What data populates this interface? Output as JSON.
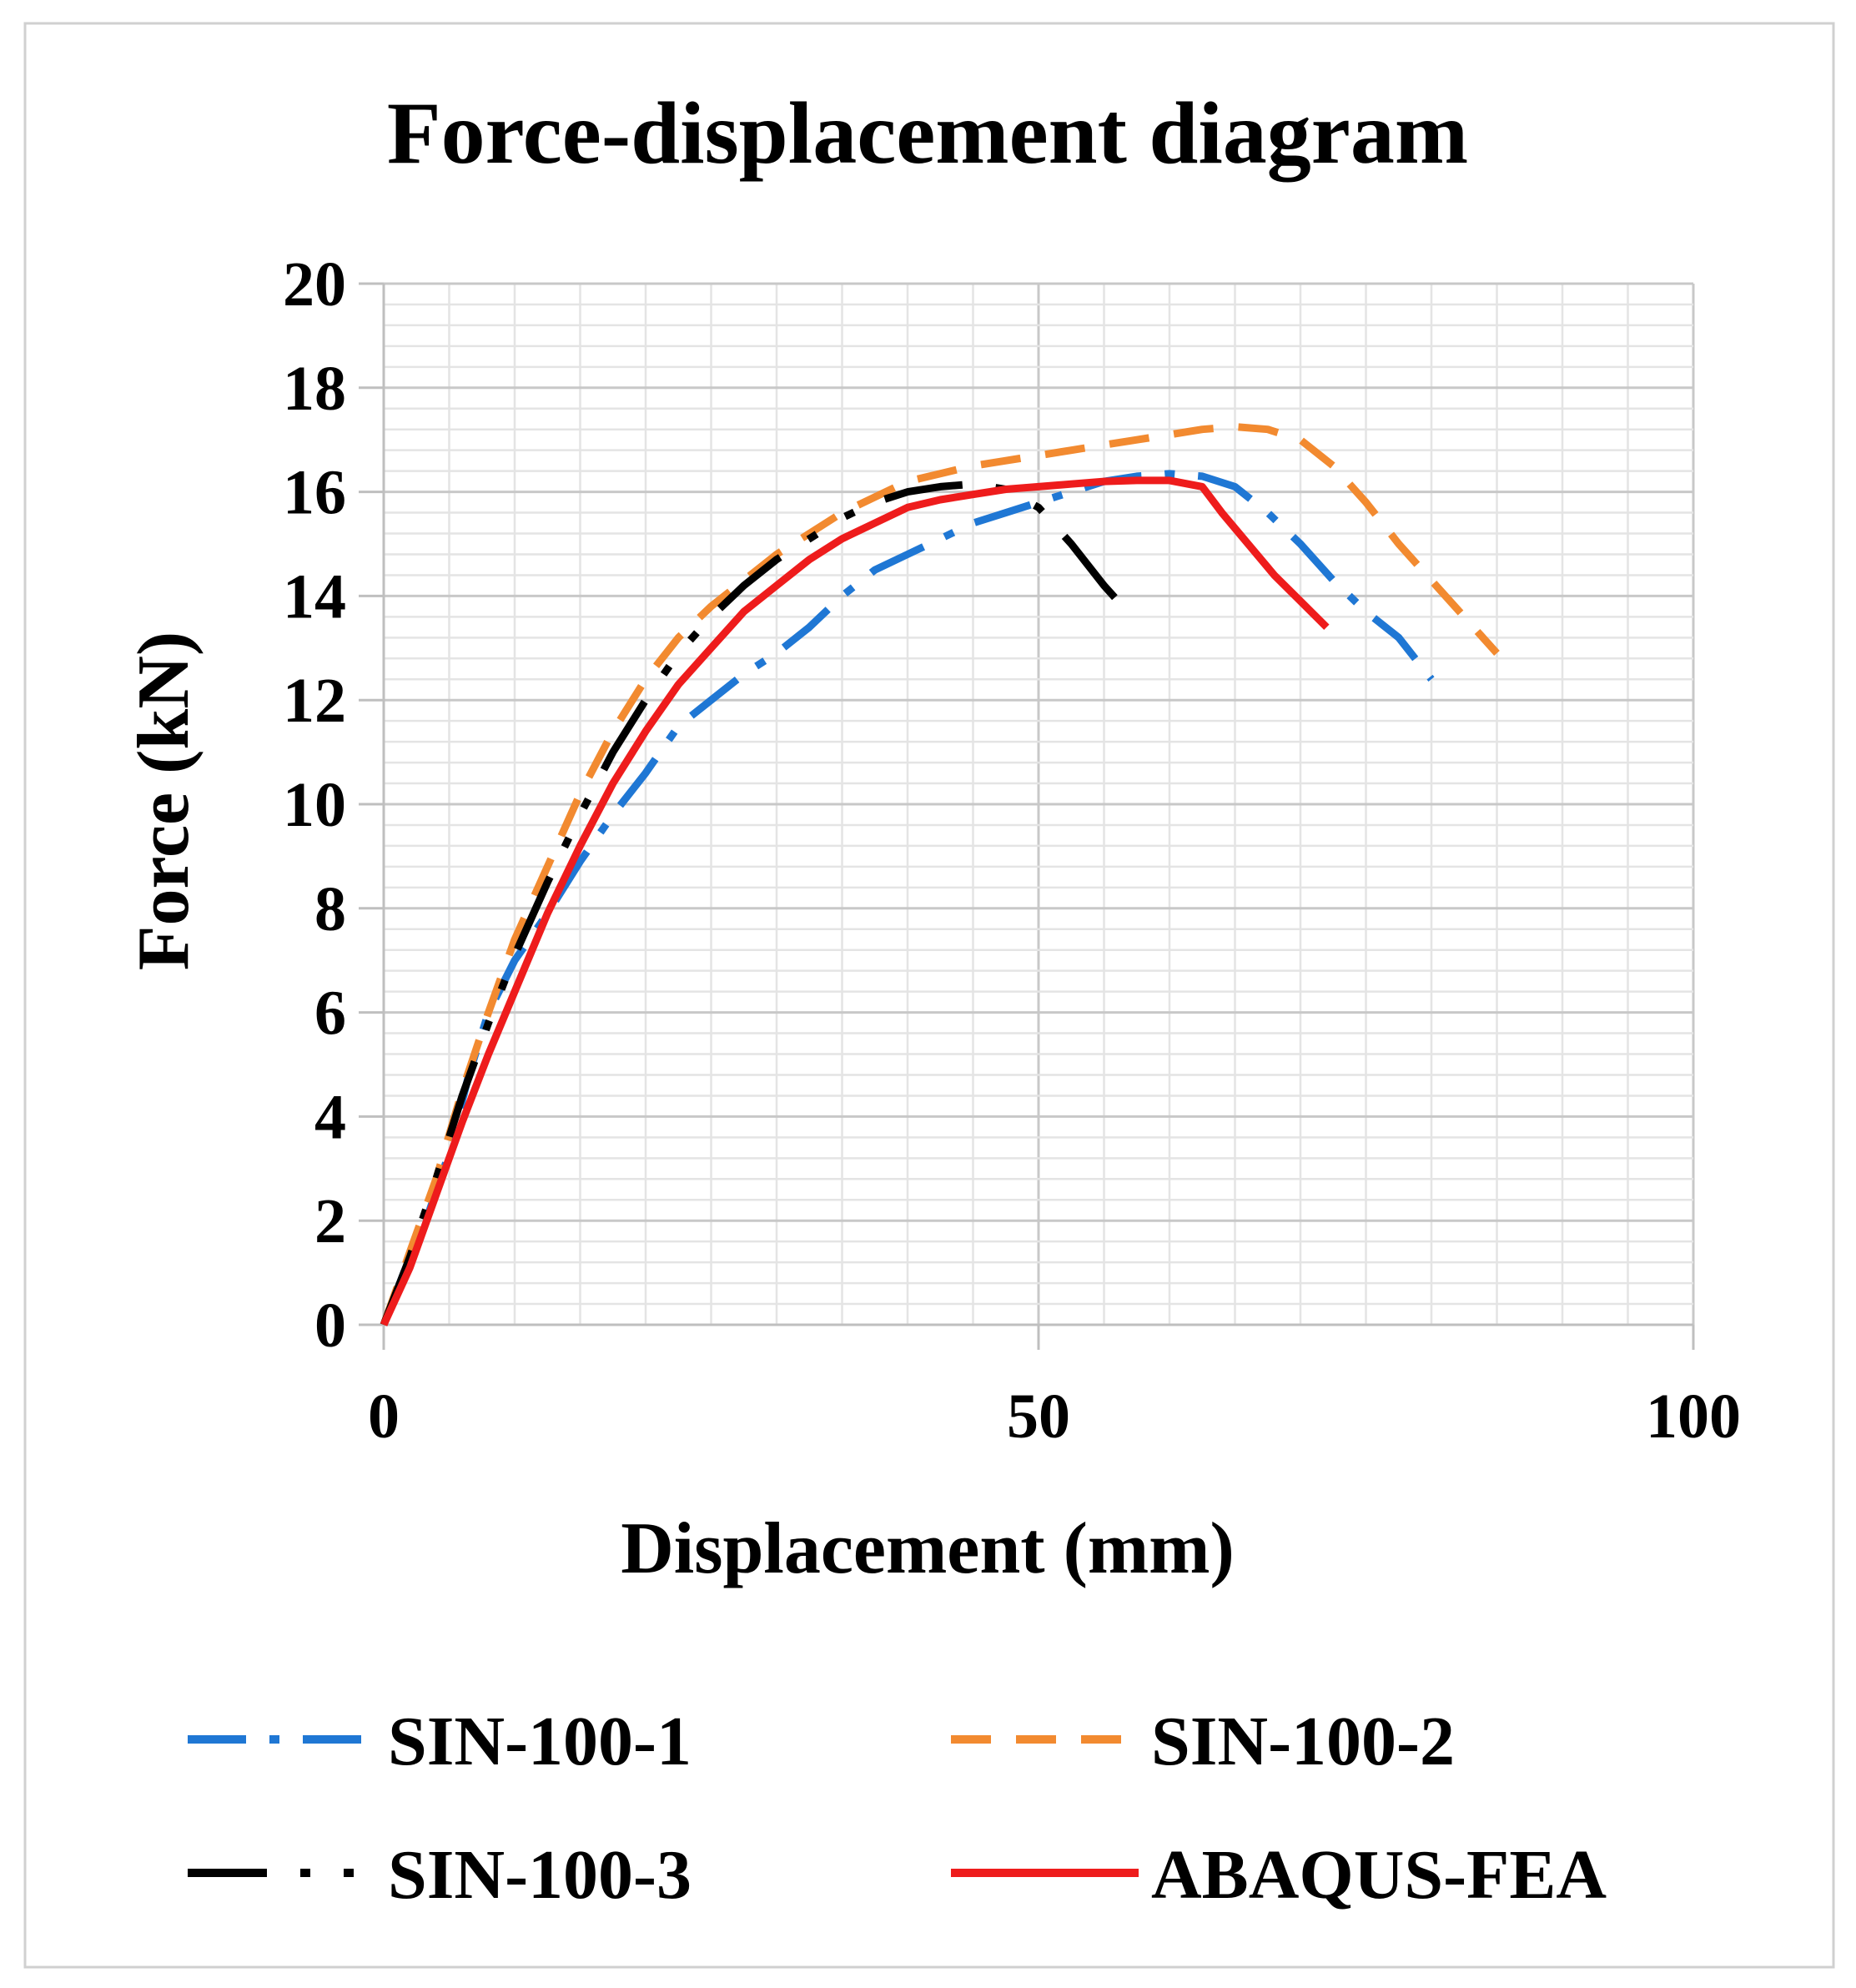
{
  "chart_data": {
    "type": "line",
    "title": "Force-displacement diagram",
    "xlabel": "Displacement (mm)",
    "ylabel": "Force (kN)",
    "xlim": [
      0,
      100
    ],
    "ylim": [
      0,
      20
    ],
    "x_ticks": [
      "0",
      "50",
      "100"
    ],
    "y_ticks": [
      "0",
      "2",
      "4",
      "6",
      "8",
      "10",
      "12",
      "14",
      "16",
      "18",
      "20"
    ],
    "grid": true,
    "legend_position": "bottom",
    "series": [
      {
        "name": "SIN-100-1",
        "color": "#1f77d4",
        "style": "dash-dot",
        "points": [
          [
            0,
            0
          ],
          [
            2,
            1.3
          ],
          [
            3.5,
            2.2
          ],
          [
            5,
            3.3
          ],
          [
            6.5,
            4.8
          ],
          [
            8,
            6.0
          ],
          [
            10,
            7.0
          ],
          [
            12.5,
            7.9
          ],
          [
            15,
            8.9
          ],
          [
            17.5,
            9.8
          ],
          [
            20,
            10.6
          ],
          [
            22.5,
            11.5
          ],
          [
            25,
            12.0
          ],
          [
            27.5,
            12.5
          ],
          [
            30,
            12.9
          ],
          [
            32.5,
            13.4
          ],
          [
            35,
            14.0
          ],
          [
            37.5,
            14.5
          ],
          [
            40,
            14.8
          ],
          [
            42.5,
            15.1
          ],
          [
            45,
            15.4
          ],
          [
            47.5,
            15.6
          ],
          [
            50,
            15.8
          ],
          [
            52.5,
            16.0
          ],
          [
            55,
            16.2
          ],
          [
            57.5,
            16.3
          ],
          [
            60,
            16.35
          ],
          [
            62.5,
            16.3
          ],
          [
            65,
            16.1
          ],
          [
            67.5,
            15.6
          ],
          [
            70,
            15.0
          ],
          [
            72.5,
            14.3
          ],
          [
            75,
            13.7
          ],
          [
            77.5,
            13.2
          ],
          [
            80,
            12.4
          ]
        ]
      },
      {
        "name": "SIN-100-2",
        "color": "#f28a30",
        "style": "dash",
        "points": [
          [
            0,
            0
          ],
          [
            2,
            1.4
          ],
          [
            4,
            2.8
          ],
          [
            6,
            4.5
          ],
          [
            8,
            6.0
          ],
          [
            10,
            7.4
          ],
          [
            12.5,
            8.8
          ],
          [
            15,
            10.2
          ],
          [
            17.5,
            11.4
          ],
          [
            20,
            12.4
          ],
          [
            22.5,
            13.2
          ],
          [
            25,
            13.8
          ],
          [
            27.5,
            14.3
          ],
          [
            30,
            14.8
          ],
          [
            32.5,
            15.2
          ],
          [
            35,
            15.6
          ],
          [
            37.5,
            15.9
          ],
          [
            40,
            16.2
          ],
          [
            42.5,
            16.35
          ],
          [
            45,
            16.5
          ],
          [
            47.5,
            16.6
          ],
          [
            50,
            16.7
          ],
          [
            52.5,
            16.8
          ],
          [
            55,
            16.9
          ],
          [
            57.5,
            17.0
          ],
          [
            60,
            17.1
          ],
          [
            62.5,
            17.2
          ],
          [
            65,
            17.25
          ],
          [
            67.5,
            17.2
          ],
          [
            70,
            17.0
          ],
          [
            72.5,
            16.5
          ],
          [
            75,
            15.8
          ],
          [
            77.5,
            15.0
          ],
          [
            80,
            14.3
          ],
          [
            82.5,
            13.6
          ],
          [
            85,
            12.9
          ]
        ]
      },
      {
        "name": "SIN-100-3",
        "color": "#000000",
        "style": "long-dash-dot-dot",
        "points": [
          [
            0,
            0
          ],
          [
            2,
            1.3
          ],
          [
            4,
            2.8
          ],
          [
            6,
            4.4
          ],
          [
            8,
            5.8
          ],
          [
            10,
            7.1
          ],
          [
            12.5,
            8.5
          ],
          [
            15,
            9.8
          ],
          [
            17.5,
            11.0
          ],
          [
            20,
            12.0
          ],
          [
            22.5,
            12.9
          ],
          [
            25,
            13.6
          ],
          [
            27.5,
            14.2
          ],
          [
            30,
            14.7
          ],
          [
            32.5,
            15.1
          ],
          [
            35,
            15.5
          ],
          [
            37.5,
            15.8
          ],
          [
            40,
            16.0
          ],
          [
            42.5,
            16.1
          ],
          [
            45,
            16.15
          ],
          [
            47.5,
            16.05
          ],
          [
            50,
            15.7
          ],
          [
            52.5,
            15.0
          ],
          [
            55,
            14.2
          ],
          [
            57.5,
            13.5
          ]
        ]
      },
      {
        "name": "ABAQUS-FEA",
        "color": "#ee1c1c",
        "style": "solid",
        "points": [
          [
            0,
            0
          ],
          [
            2,
            1.1
          ],
          [
            4,
            2.5
          ],
          [
            6,
            3.9
          ],
          [
            8,
            5.2
          ],
          [
            10,
            6.4
          ],
          [
            12.5,
            7.9
          ],
          [
            15,
            9.2
          ],
          [
            17.5,
            10.4
          ],
          [
            20,
            11.4
          ],
          [
            22.5,
            12.3
          ],
          [
            25,
            13.0
          ],
          [
            27.5,
            13.7
          ],
          [
            30,
            14.2
          ],
          [
            32.5,
            14.7
          ],
          [
            35,
            15.1
          ],
          [
            37.5,
            15.4
          ],
          [
            40,
            15.7
          ],
          [
            42.5,
            15.85
          ],
          [
            45,
            15.95
          ],
          [
            47.5,
            16.05
          ],
          [
            50,
            16.1
          ],
          [
            52.5,
            16.15
          ],
          [
            55,
            16.2
          ],
          [
            57.5,
            16.22
          ],
          [
            60,
            16.22
          ],
          [
            62.5,
            16.1
          ],
          [
            64,
            15.6
          ],
          [
            66,
            15.0
          ],
          [
            68,
            14.4
          ],
          [
            70,
            13.9
          ],
          [
            72,
            13.4
          ]
        ]
      }
    ]
  }
}
